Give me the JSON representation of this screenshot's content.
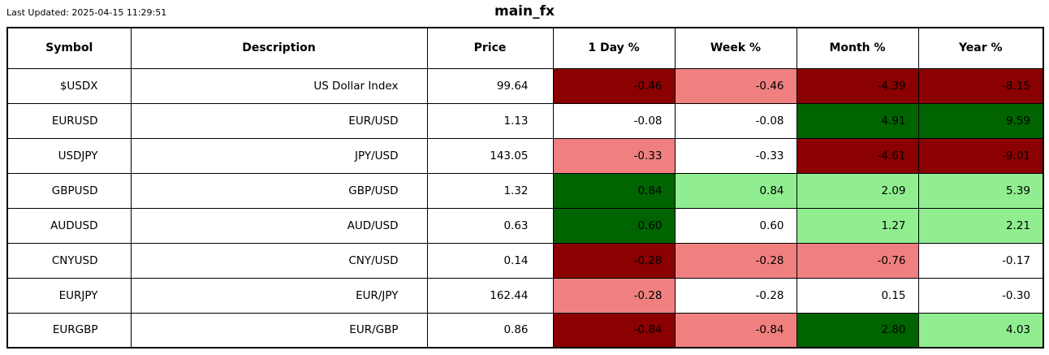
{
  "chart_data": {
    "type": "table",
    "title": "main_fx",
    "last_updated": "Last Updated: 2025-04-15 11:29:51",
    "columns": [
      "Symbol",
      "Description",
      "Price",
      "1 Day %",
      "Week %",
      "Month %",
      "Year %"
    ],
    "colors": {
      "strong_down": "#8b0000",
      "down": "#f08080",
      "neutral": "#ffffff",
      "up": "#90ee90",
      "strong_up": "#006400"
    },
    "rows": [
      {
        "symbol": "$USDX",
        "description": "US Dollar Index",
        "price": "99.64",
        "changes": [
          {
            "value": "-0.46",
            "tone": "strong_down"
          },
          {
            "value": "-0.46",
            "tone": "down"
          },
          {
            "value": "-4.39",
            "tone": "strong_down"
          },
          {
            "value": "-8.15",
            "tone": "strong_down"
          }
        ]
      },
      {
        "symbol": "EURUSD",
        "description": "EUR/USD",
        "price": "1.13",
        "changes": [
          {
            "value": "-0.08",
            "tone": "neutral"
          },
          {
            "value": "-0.08",
            "tone": "neutral"
          },
          {
            "value": "4.91",
            "tone": "strong_up"
          },
          {
            "value": "9.59",
            "tone": "strong_up"
          }
        ]
      },
      {
        "symbol": "USDJPY",
        "description": "JPY/USD",
        "price": "143.05",
        "changes": [
          {
            "value": "-0.33",
            "tone": "down"
          },
          {
            "value": "-0.33",
            "tone": "neutral"
          },
          {
            "value": "-4.61",
            "tone": "strong_down"
          },
          {
            "value": "-9.01",
            "tone": "strong_down"
          }
        ]
      },
      {
        "symbol": "GBPUSD",
        "description": "GBP/USD",
        "price": "1.32",
        "changes": [
          {
            "value": "0.84",
            "tone": "strong_up"
          },
          {
            "value": "0.84",
            "tone": "up"
          },
          {
            "value": "2.09",
            "tone": "up"
          },
          {
            "value": "5.39",
            "tone": "up"
          }
        ]
      },
      {
        "symbol": "AUDUSD",
        "description": "AUD/USD",
        "price": "0.63",
        "changes": [
          {
            "value": "0.60",
            "tone": "strong_up"
          },
          {
            "value": "0.60",
            "tone": "neutral"
          },
          {
            "value": "1.27",
            "tone": "up"
          },
          {
            "value": "2.21",
            "tone": "up"
          }
        ]
      },
      {
        "symbol": "CNYUSD",
        "description": "CNY/USD",
        "price": "0.14",
        "changes": [
          {
            "value": "-0.28",
            "tone": "strong_down"
          },
          {
            "value": "-0.28",
            "tone": "down"
          },
          {
            "value": "-0.76",
            "tone": "down"
          },
          {
            "value": "-0.17",
            "tone": "neutral"
          }
        ]
      },
      {
        "symbol": "EURJPY",
        "description": "EUR/JPY",
        "price": "162.44",
        "changes": [
          {
            "value": "-0.28",
            "tone": "down"
          },
          {
            "value": "-0.28",
            "tone": "neutral"
          },
          {
            "value": "0.15",
            "tone": "neutral"
          },
          {
            "value": "-0.30",
            "tone": "neutral"
          }
        ]
      },
      {
        "symbol": "EURGBP",
        "description": "EUR/GBP",
        "price": "0.86",
        "changes": [
          {
            "value": "-0.84",
            "tone": "strong_down"
          },
          {
            "value": "-0.84",
            "tone": "down"
          },
          {
            "value": "2.80",
            "tone": "strong_up"
          },
          {
            "value": "4.03",
            "tone": "up"
          }
        ]
      }
    ]
  }
}
